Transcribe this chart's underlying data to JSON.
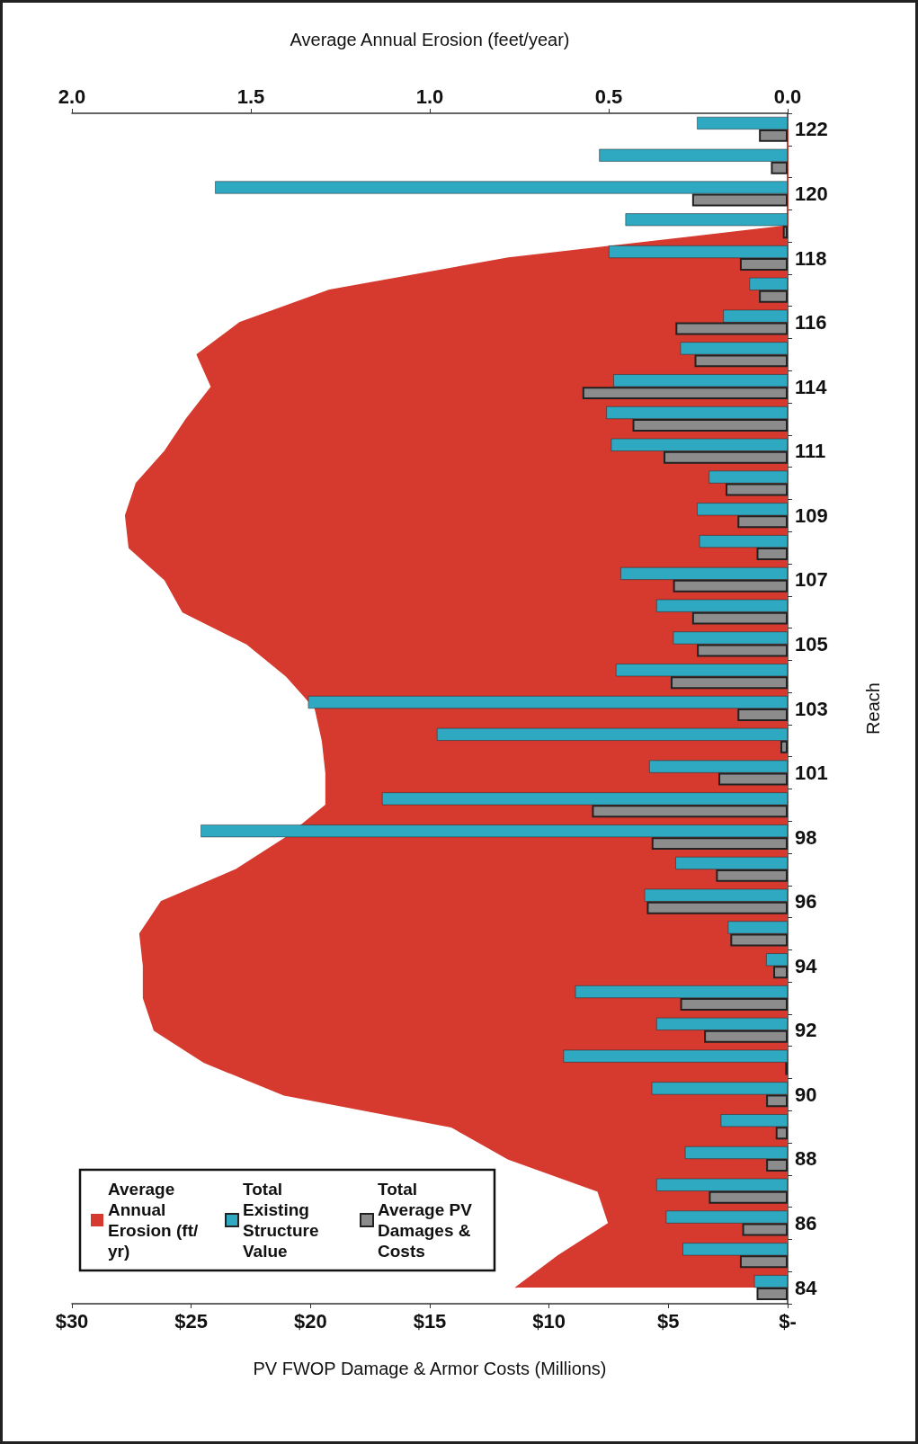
{
  "chart_data": {
    "type": "bar",
    "orientation": "horizontal",
    "xlabel": "PV FWOP Damage & Armor Costs (Millions)",
    "ylabel": "Reach",
    "x2label": "Average Annual Erosion (feet/year)",
    "categories": [
      "122",
      null,
      "120",
      null,
      "118",
      null,
      "116",
      null,
      "114",
      null,
      "111",
      null,
      "109",
      null,
      "107",
      null,
      "105",
      null,
      "103",
      null,
      "101",
      null,
      "98",
      null,
      "96",
      null,
      "94",
      null,
      "92",
      null,
      "90",
      null,
      "88",
      null,
      "86",
      null,
      "84"
    ],
    "series": [
      {
        "name": "Average Annual Erosion (ft/yr)",
        "type": "area",
        "axis": "x2",
        "color": "#d63a2f",
        "values": [
          0,
          0,
          0,
          0,
          0.78,
          1.28,
          1.53,
          1.65,
          1.61,
          1.68,
          1.74,
          1.82,
          1.85,
          1.84,
          1.74,
          1.69,
          1.51,
          1.4,
          1.32,
          1.3,
          1.29,
          1.29,
          1.4,
          1.54,
          1.75,
          1.81,
          1.8,
          1.8,
          1.77,
          1.63,
          1.41,
          0.94,
          0.78,
          0.53,
          0.5,
          0.64,
          0.76
        ]
      },
      {
        "name": "Total Existing Structure Value",
        "color": "#2fa9c2",
        "values": [
          3.8,
          7.9,
          24.0,
          6.8,
          7.5,
          1.6,
          2.7,
          4.5,
          7.3,
          7.6,
          7.4,
          3.3,
          3.8,
          3.7,
          7.0,
          5.5,
          4.8,
          7.2,
          20.1,
          14.7,
          5.8,
          17.0,
          24.6,
          4.7,
          6.0,
          2.5,
          0.9,
          8.9,
          5.5,
          9.4,
          5.7,
          2.8,
          4.3,
          5.5,
          5.1,
          4.4,
          1.4
        ]
      },
      {
        "name": "Total Average PV Damages & Costs",
        "color": "#8c8c8c",
        "values": [
          1.2,
          0.7,
          4.0,
          0.2,
          2.0,
          1.2,
          4.7,
          3.9,
          8.6,
          6.5,
          5.2,
          2.6,
          2.1,
          1.3,
          4.8,
          4.0,
          3.8,
          4.9,
          2.1,
          0.3,
          2.9,
          8.2,
          5.7,
          3.0,
          5.9,
          2.4,
          0.6,
          4.5,
          3.5,
          0.1,
          0.9,
          0.5,
          0.9,
          3.3,
          1.9,
          2.0,
          1.3
        ]
      }
    ],
    "xlim": [
      30,
      0
    ],
    "xticks": [
      {
        "value": 0,
        "label": "$-"
      },
      {
        "value": 5,
        "label": "$5"
      },
      {
        "value": 10,
        "label": "$10"
      },
      {
        "value": 15,
        "label": "$15"
      },
      {
        "value": 20,
        "label": "$20"
      },
      {
        "value": 25,
        "label": "$25"
      },
      {
        "value": 30,
        "label": "$30"
      }
    ],
    "x2lim": [
      2,
      0
    ],
    "x2ticks": [
      {
        "value": 0,
        "label": "0.0"
      },
      {
        "value": 0.5,
        "label": "0.5"
      },
      {
        "value": 1,
        "label": "1.0"
      },
      {
        "value": 1.5,
        "label": "1.5"
      },
      {
        "value": 2,
        "label": "2.0"
      }
    ],
    "grid": false,
    "legend": "bottom left"
  }
}
